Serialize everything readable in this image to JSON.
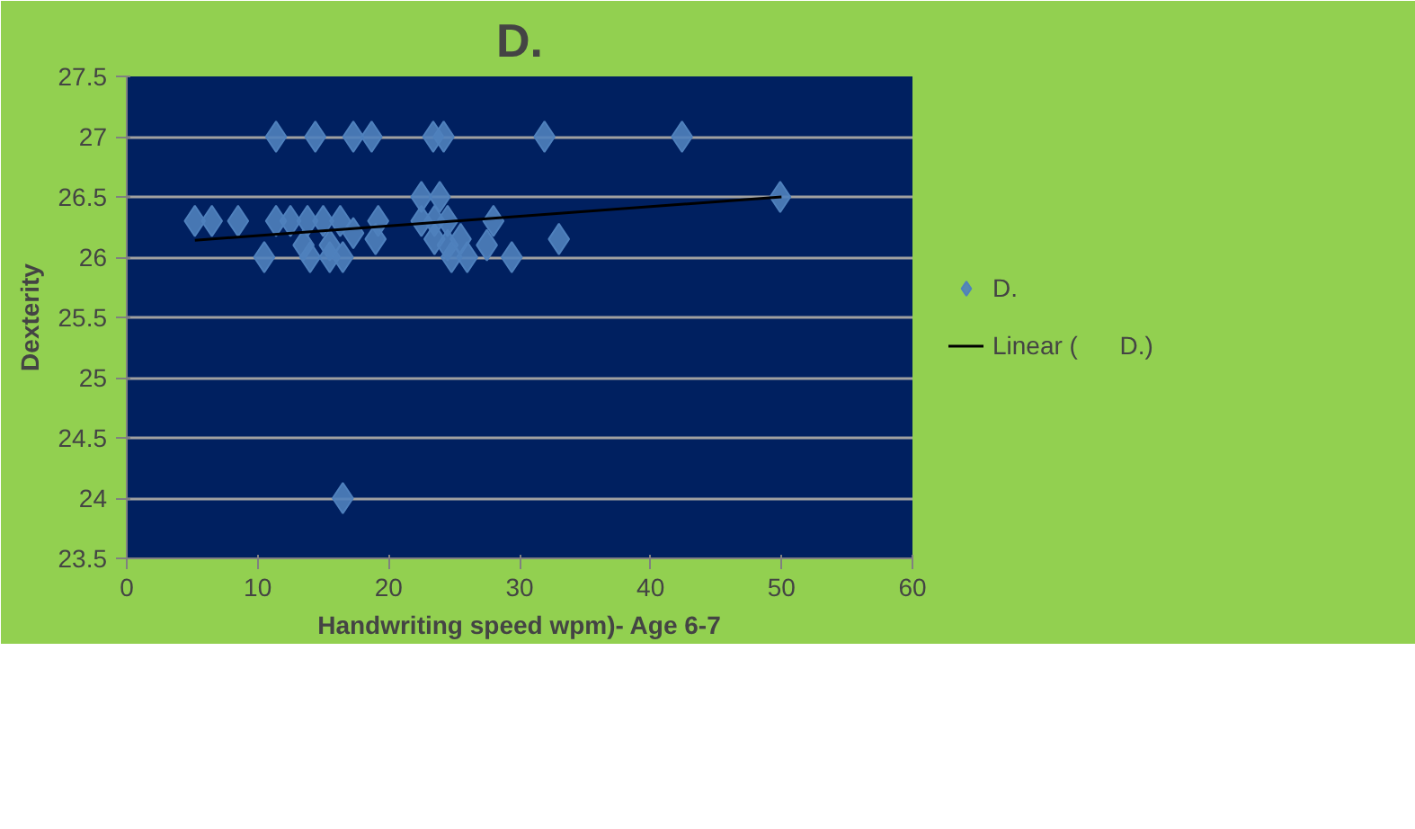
{
  "chart_data": {
    "type": "scatter",
    "title": "D.",
    "xlabel": "Handwriting speed wpm)- Age 6-7",
    "ylabel": "Dexterity",
    "xlim": [
      0,
      60
    ],
    "xticks": [
      0,
      10,
      20,
      30,
      40,
      50,
      60
    ],
    "ylim": [
      23.5,
      27.5
    ],
    "yticks": [
      23.5,
      24,
      24.5,
      25,
      25.5,
      26,
      26.5,
      27,
      27.5
    ],
    "grid": "y",
    "legend": "right",
    "series": [
      {
        "name": "D.",
        "marker": "diamond",
        "color": "#4f81bd",
        "x": [
          11.4,
          14.4,
          17.3,
          18.7,
          23.4,
          24.2,
          31.9,
          42.4,
          22.5,
          23.9,
          49.9,
          5.2,
          6.5,
          8.5,
          11.4,
          12.5,
          13.8,
          15,
          16.3,
          19.2,
          22.5,
          23.5,
          24.5,
          28,
          17.3,
          19,
          23.5,
          25.5,
          33,
          13.5,
          15.5,
          24.5,
          27.5,
          10.5,
          14,
          15.5,
          16.5,
          24.8,
          26,
          29.4,
          16.5
        ],
        "values": [
          27,
          27,
          27,
          27,
          27,
          27,
          27,
          27,
          26.5,
          26.5,
          26.5,
          26.3,
          26.3,
          26.3,
          26.3,
          26.3,
          26.3,
          26.3,
          26.3,
          26.3,
          26.3,
          26.3,
          26.3,
          26.3,
          26.2,
          26.15,
          26.15,
          26.15,
          26.15,
          26.1,
          26.1,
          26.1,
          26.1,
          26,
          26,
          26,
          26,
          26,
          26,
          26,
          24
        ]
      },
      {
        "name": "Linear (      D.)",
        "type": "line",
        "color": "#000000",
        "x": [
          5.2,
          50
        ],
        "values": [
          26.14,
          26.5
        ]
      }
    ]
  }
}
